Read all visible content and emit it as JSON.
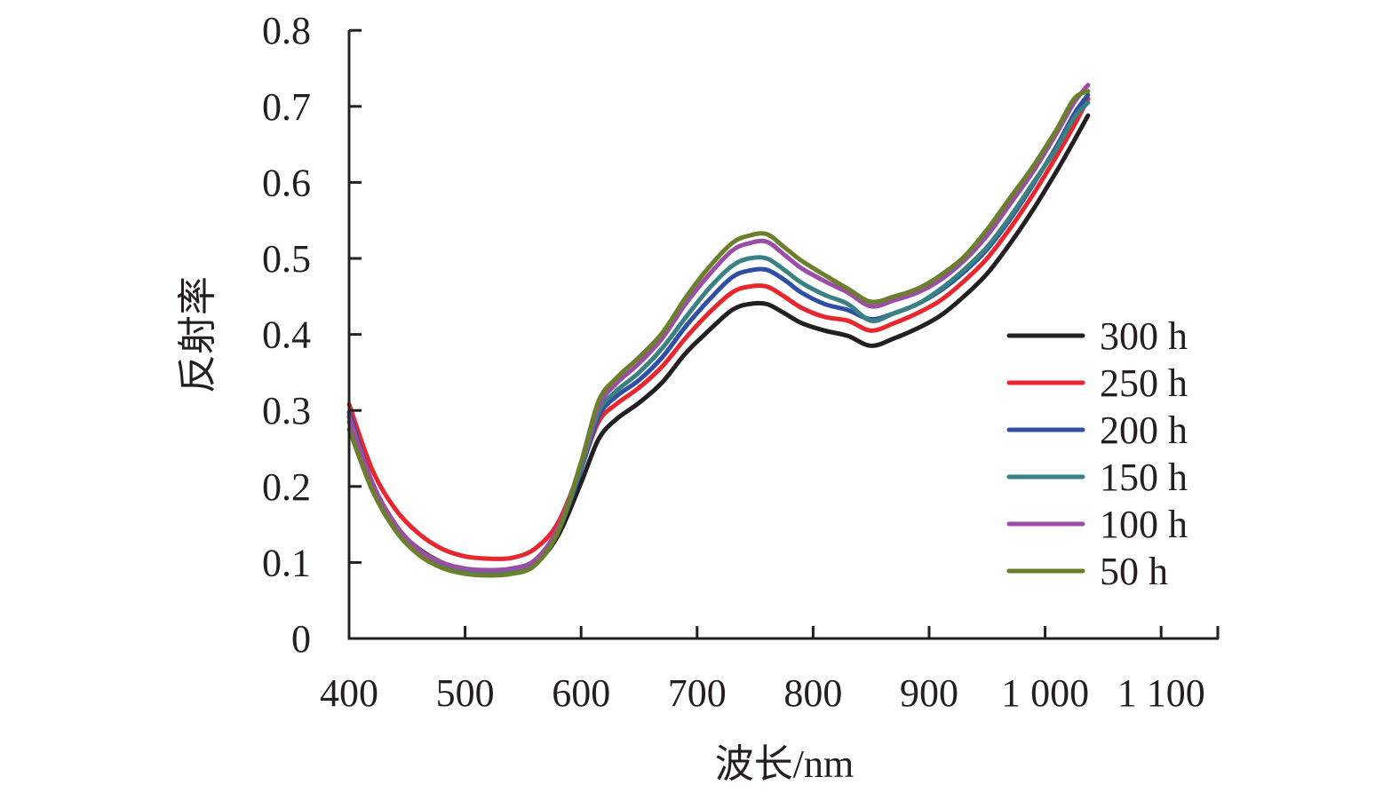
{
  "chart_data": {
    "type": "line",
    "title": "",
    "xlabel": "波长/nm",
    "ylabel": "反射率",
    "xlim": [
      400,
      1150
    ],
    "ylim": [
      0,
      0.8
    ],
    "x_ticks": [
      400,
      500,
      600,
      700,
      800,
      900,
      1000,
      1100
    ],
    "x_tick_labels": [
      "400",
      "500",
      "600",
      "700",
      "800",
      "900",
      "1 000",
      "1 100"
    ],
    "y_ticks": [
      0,
      0.1,
      0.2,
      0.3,
      0.4,
      0.5,
      0.6,
      0.7,
      0.8
    ],
    "y_tick_labels": [
      "0",
      "0.1",
      "0.2",
      "0.3",
      "0.4",
      "0.5",
      "0.6",
      "0.7",
      "0.8"
    ],
    "grid": false,
    "legend_position": "right",
    "x": [
      400,
      420,
      440,
      460,
      480,
      500,
      520,
      540,
      560,
      580,
      600,
      615,
      630,
      650,
      670,
      690,
      710,
      730,
      745,
      760,
      775,
      790,
      810,
      830,
      850,
      870,
      890,
      910,
      930,
      950,
      970,
      990,
      1010,
      1025,
      1037
    ],
    "series": [
      {
        "name": "300 h",
        "color": "#231f20",
        "values": [
          0.292,
          0.205,
          0.148,
          0.118,
          0.1,
          0.09,
          0.087,
          0.088,
          0.098,
          0.135,
          0.205,
          0.262,
          0.288,
          0.31,
          0.337,
          0.375,
          0.405,
          0.432,
          0.44,
          0.44,
          0.428,
          0.415,
          0.405,
          0.398,
          0.385,
          0.395,
          0.408,
          0.425,
          0.45,
          0.48,
          0.52,
          0.565,
          0.615,
          0.655,
          0.688
        ]
      },
      {
        "name": "250 h",
        "color": "#e8262d",
        "values": [
          0.308,
          0.222,
          0.17,
          0.138,
          0.118,
          0.108,
          0.105,
          0.106,
          0.118,
          0.152,
          0.225,
          0.285,
          0.308,
          0.33,
          0.358,
          0.395,
          0.428,
          0.455,
          0.463,
          0.463,
          0.45,
          0.435,
          0.423,
          0.418,
          0.405,
          0.415,
          0.428,
          0.445,
          0.47,
          0.5,
          0.54,
          0.585,
          0.635,
          0.675,
          0.71
        ]
      },
      {
        "name": "200 h",
        "color": "#2e4fa3",
        "values": [
          0.298,
          0.205,
          0.15,
          0.115,
          0.098,
          0.09,
          0.088,
          0.09,
          0.1,
          0.14,
          0.222,
          0.292,
          0.318,
          0.34,
          0.37,
          0.41,
          0.445,
          0.475,
          0.484,
          0.485,
          0.472,
          0.455,
          0.44,
          0.432,
          0.42,
          0.428,
          0.44,
          0.458,
          0.482,
          0.512,
          0.552,
          0.598,
          0.648,
          0.69,
          0.715
        ]
      },
      {
        "name": "150 h",
        "color": "#3a8183",
        "values": [
          0.285,
          0.198,
          0.145,
          0.112,
          0.095,
          0.087,
          0.085,
          0.087,
          0.098,
          0.14,
          0.225,
          0.298,
          0.325,
          0.35,
          0.382,
          0.422,
          0.46,
          0.49,
          0.5,
          0.5,
          0.485,
          0.468,
          0.452,
          0.44,
          0.418,
          0.428,
          0.44,
          0.46,
          0.485,
          0.515,
          0.555,
          0.6,
          0.645,
          0.685,
          0.705
        ]
      },
      {
        "name": "100 h",
        "color": "#9b4ea6",
        "values": [
          0.292,
          0.205,
          0.15,
          0.117,
          0.1,
          0.092,
          0.09,
          0.092,
          0.103,
          0.145,
          0.23,
          0.305,
          0.335,
          0.362,
          0.395,
          0.44,
          0.478,
          0.51,
          0.52,
          0.522,
          0.505,
          0.487,
          0.47,
          0.455,
          0.437,
          0.445,
          0.455,
          0.472,
          0.497,
          0.53,
          0.572,
          0.615,
          0.665,
          0.705,
          0.728
        ]
      },
      {
        "name": "50 h",
        "color": "#6b7f2d",
        "values": [
          0.275,
          0.195,
          0.142,
          0.11,
          0.093,
          0.085,
          0.083,
          0.085,
          0.096,
          0.14,
          0.232,
          0.312,
          0.342,
          0.37,
          0.402,
          0.448,
          0.488,
          0.52,
          0.53,
          0.532,
          0.515,
          0.497,
          0.478,
          0.46,
          0.443,
          0.45,
          0.46,
          0.478,
          0.502,
          0.538,
          0.58,
          0.622,
          0.67,
          0.71,
          0.72
        ]
      }
    ]
  }
}
